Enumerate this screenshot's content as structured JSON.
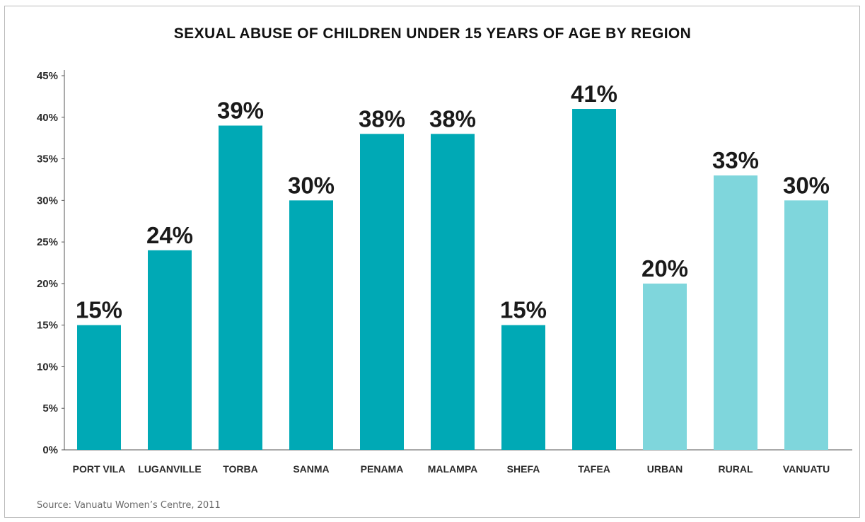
{
  "chart_data": {
    "type": "bar",
    "title": "SEXUAL ABUSE OF CHILDREN UNDER 15 YEARS OF AGE BY REGION",
    "categories": [
      "PORT VILA",
      "LUGANVILLE",
      "TORBA",
      "SANMA",
      "PENAMA",
      "MALAMPA",
      "SHEFA",
      "TAFEA",
      "URBAN",
      "RURAL",
      "VANUATU"
    ],
    "values": [
      15,
      24,
      39,
      30,
      38,
      38,
      15,
      41,
      20,
      33,
      30
    ],
    "data_labels": [
      "15%",
      "24%",
      "39%",
      "30%",
      "38%",
      "38%",
      "15%",
      "41%",
      "20%",
      "33%",
      "30%"
    ],
    "bar_colors": [
      "#00a9b5",
      "#00a9b5",
      "#00a9b5",
      "#00a9b5",
      "#00a9b5",
      "#00a9b5",
      "#00a9b5",
      "#00a9b5",
      "#7fd6dc",
      "#7fd6dc",
      "#7fd6dc"
    ],
    "yticks": [
      0,
      5,
      10,
      15,
      20,
      25,
      30,
      35,
      40,
      45
    ],
    "ytick_labels": [
      "0%",
      "5%",
      "10%",
      "15%",
      "20%",
      "25%",
      "30%",
      "35%",
      "40%",
      "45%"
    ],
    "ylim": [
      0,
      45
    ],
    "xlabel": "",
    "ylabel": "",
    "grid": false
  },
  "source": "Source: Vanuatu Women’s Centre, 2011"
}
